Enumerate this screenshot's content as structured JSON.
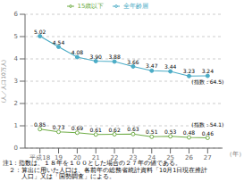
{
  "chart_data": {
    "type": "line",
    "ylabel": "(人／人口10万人)",
    "xlabel": "（年）",
    "x": [
      18,
      19,
      20,
      21,
      22,
      23,
      24,
      25,
      26,
      27
    ],
    "xlim": [
      17.2,
      27.8
    ],
    "xticks": [
      {
        "value": 18,
        "label": "平成18"
      },
      19,
      20,
      21,
      22,
      23,
      24,
      25,
      26,
      27
    ],
    "ylim": [
      0,
      6
    ],
    "yticks": [
      0,
      1,
      2,
      3,
      4,
      5,
      6
    ],
    "series": [
      {
        "name": "全年齢層",
        "color": "#4bacc6",
        "marker": "circle",
        "values": [
          5.02,
          4.54,
          4.08,
          3.9,
          3.88,
          3.66,
          3.47,
          3.44,
          3.23,
          3.24
        ],
        "value_labels": [
          "5.02",
          "4.54",
          "4.08",
          "3.90",
          "3.88",
          "3.66",
          "3.47",
          "3.44",
          "3.23",
          "3.24"
        ]
      },
      {
        "name": "15歳以下",
        "color": "#70ad47",
        "marker": "open_circle",
        "values": [
          0.85,
          0.73,
          0.69,
          0.61,
          0.62,
          0.63,
          0.51,
          0.53,
          0.48,
          0.46
        ]
      }
    ],
    "data_labels": true,
    "annotations": [
      "(指数：64.5)",
      "(指数：54.1)"
    ],
    "notes": [
      "注1：指数は、１８年を１００とした場合の２７年の値である。",
      "　２：算出に用いた人口は、各前年の総務省統計資料「10月1日現在推計",
      "　　　人口」又は「国勢調査」による。"
    ],
    "grid": "y",
    "legend": "top"
  }
}
